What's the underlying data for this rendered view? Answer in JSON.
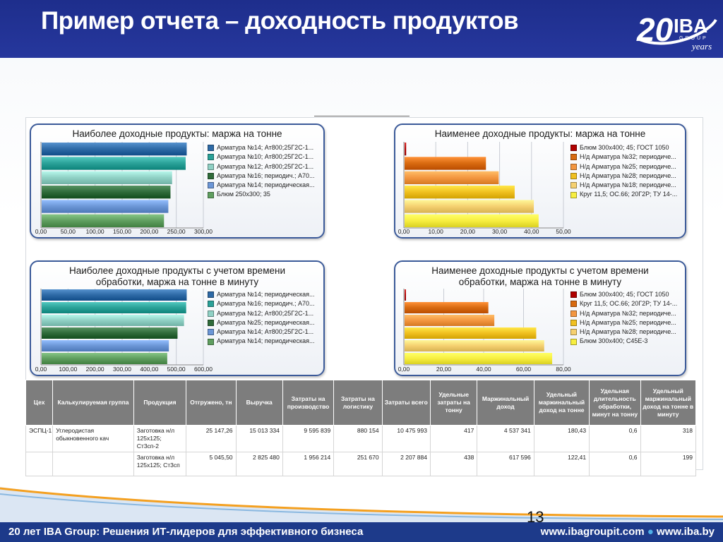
{
  "slide": {
    "title": "Пример отчета – доходность продуктов",
    "page_number": "13",
    "footer_left": "20 лет IBA Group: Решения ИТ-лидеров для эффективного бизнеса",
    "footer_url1": "www.ibagroupit.com",
    "footer_sep": "●",
    "footer_url2": "www.iba.by",
    "logo": {
      "number": "20",
      "brand": "IBA",
      "sub": "GROUP",
      "years": "years"
    }
  },
  "chart_data": [
    {
      "type": "bar",
      "orientation": "horizontal",
      "title": "Наиболее доходные продукты: маржа на тонне",
      "xlim": [
        0,
        300
      ],
      "xticks": [
        "0,00",
        "50,00",
        "100,00",
        "150,00",
        "200,00",
        "250,00",
        "300,00"
      ],
      "categories": [
        "Арматура №14; Ат800;25Г2С-1...",
        "Арматура №10; Ат800;25Г2С-1...",
        "Арматура №12; Ат800;25Г2С-1...",
        "Арматура №16; периодич.; А70...",
        "Арматура №14; периодическая...",
        "Блюм 250x300; 35"
      ],
      "values": [
        268,
        266,
        241,
        238,
        234,
        226
      ],
      "colors": [
        "#2e6aa6",
        "#2aa198",
        "#8fd0c4",
        "#2f6b3a",
        "#6b96d6",
        "#5f9e5f"
      ],
      "legend": "right"
    },
    {
      "type": "bar",
      "orientation": "horizontal",
      "title": "Наименее доходные продукты: маржа на тонне",
      "xlim": [
        0,
        50
      ],
      "xticks": [
        "0,00",
        "10,00",
        "20,00",
        "30,00",
        "40,00",
        "50,00"
      ],
      "categories": [
        "Блюм 300x400; 45; ГОСТ 1050",
        "Н/д Арматура №32; периодиче...",
        "Н/д Арматура №25; периодиче...",
        "Н/д Арматура №28; периодиче...",
        "Н/д Арматура №18; периодиче...",
        "Круг 11,5; ОС.66; 20Г2Р; ТУ 14-..."
      ],
      "values": [
        0.5,
        25.5,
        29.5,
        34.5,
        40.5,
        42
      ],
      "colors": [
        "#b00000",
        "#d86a10",
        "#f39640",
        "#f0c020",
        "#f5d070",
        "#f7ee40"
      ],
      "legend": "right"
    },
    {
      "type": "bar",
      "orientation": "horizontal",
      "title": "Наиболее доходные продукты с учетом времени\nобработки, маржа на тонне в минуту",
      "xlim": [
        0,
        600
      ],
      "xticks": [
        "0,00",
        "100,00",
        "200,00",
        "300,00",
        "400,00",
        "500,00",
        "600,00"
      ],
      "categories": [
        "Арматура №14; периодическая...",
        "Арматура №16; периодич.; А70...",
        "Арматура №12; Ат800;25Г2С-1...",
        "Арматура №25; периодическая...",
        "Арматура №14; Ат800;25Г2С-1...",
        "Арматура №14; периодическая..."
      ],
      "values": [
        536,
        534,
        526,
        502,
        470,
        464
      ],
      "colors": [
        "#2e6aa6",
        "#2aa198",
        "#8fd0c4",
        "#2f6b3a",
        "#6b96d6",
        "#5f9e5f"
      ],
      "legend": "right"
    },
    {
      "type": "bar",
      "orientation": "horizontal",
      "title": "Наименее доходные продукты с учетом времени\nобработки, маржа на тонне в минуту",
      "xlim": [
        0,
        80
      ],
      "xticks": [
        "0,00",
        "20,00",
        "40,00",
        "60,00",
        "80,00"
      ],
      "categories": [
        "Блюм 300x400; 45; ГОСТ 1050",
        "Круг 11,5; ОС.66; 20Г2Р; ТУ 14-...",
        "Н/д Арматура №32; периодиче...",
        "Н/д Арматура №25; периодиче...",
        "Н/д Арматура №28; периодиче...",
        "Блюм 300x400; С45Е-3"
      ],
      "values": [
        0.5,
        42,
        45,
        66,
        70,
        74
      ],
      "colors": [
        "#b00000",
        "#d86a10",
        "#f39640",
        "#f0c020",
        "#f5d070",
        "#f7ee40"
      ],
      "legend": "right"
    }
  ],
  "table": {
    "headers": [
      "Цех",
      "Калькулируемая группа",
      "Продукция",
      "Отгружено, тн",
      "Выручка",
      "Затраты на производство",
      "Затраты на логистику",
      "Затраты всего",
      "Удельные затраты на тонну",
      "Маржинальный доход",
      "Удельный маржинальный доход на тонне",
      "Удельная длительность обработки, минут на тонну",
      "Удельный маржинальный доход на тонне в минуту"
    ],
    "rows": [
      [
        "ЭСПЦ-1",
        "Углеродистая обыкновенного кач",
        "Заготовка н/л 125x125; Ст3сп-2",
        "25 147,26",
        "15 013 334",
        "9 595 839",
        "880 154",
        "10 475 993",
        "417",
        "4 537 341",
        "180,43",
        "0,6",
        "318"
      ],
      [
        "",
        "",
        "Заготовка н/л 125x125; Ст3сп",
        "5 045,50",
        "2 825 480",
        "1 956 214",
        "251 670",
        "2 207 884",
        "438",
        "617 596",
        "122,41",
        "0,6",
        "199"
      ]
    ]
  }
}
